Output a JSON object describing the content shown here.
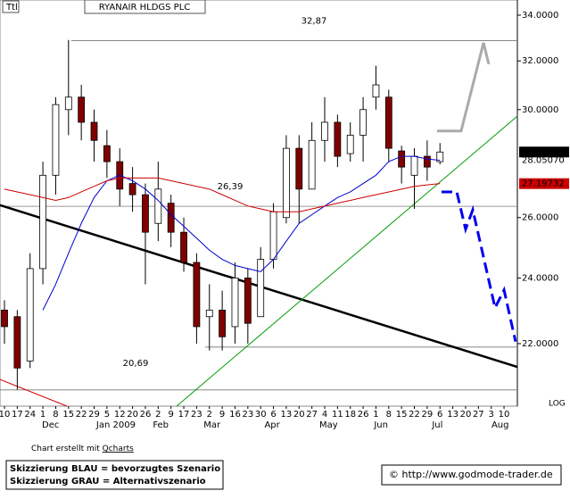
{
  "chart_data": {
    "type": "candlestick",
    "tag": "Ttl",
    "title": "RYANAIR HLDGS PLC",
    "categories": [
      "10",
      "17",
      "24",
      "1",
      "8",
      "15",
      "22",
      "29",
      "5",
      "12",
      "20",
      "26",
      "2",
      "9",
      "17",
      "23",
      "2",
      "9",
      "16",
      "23",
      "30",
      "6",
      "13",
      "20",
      "27",
      "4",
      "11",
      "18",
      "26",
      "1",
      "8",
      "15",
      "22",
      "29",
      "6",
      "13",
      "20",
      "27",
      "3",
      "10"
    ],
    "month_labels": [
      "Dec",
      "Jan 2009",
      "Feb",
      "Mar",
      "Apr",
      "May",
      "Jun",
      "Jul",
      "Aug"
    ],
    "open": [
      23.0,
      22.8,
      21.5,
      24.3,
      27.5,
      30.0,
      30.5,
      29.5,
      28.6,
      28.0,
      27.2,
      26.8,
      25.8,
      26.5,
      25.5,
      24.5,
      22.8,
      23.0,
      22.5,
      24.0,
      22.8,
      24.6,
      26.0,
      28.5,
      27.0,
      28.8,
      29.5,
      28.3,
      29.0,
      30.5,
      30.5,
      28.4,
      27.5,
      28.2,
      28.0,
      null,
      null,
      null,
      null,
      null
    ],
    "high": [
      23.3,
      23.0,
      24.8,
      28.0,
      30.5,
      32.9,
      31.0,
      30.0,
      29.2,
      28.5,
      27.8,
      27.2,
      28.0,
      26.8,
      26.0,
      24.8,
      23.8,
      23.6,
      24.5,
      24.3,
      25.0,
      26.5,
      29.0,
      29.0,
      29.5,
      30.5,
      29.8,
      29.5,
      30.5,
      31.8,
      30.8,
      28.6,
      28.5,
      28.8,
      28.7,
      null,
      null,
      null,
      null,
      null
    ],
    "low": [
      22.0,
      20.7,
      21.3,
      23.8,
      26.8,
      29.0,
      28.8,
      28.0,
      27.4,
      26.4,
      26.2,
      23.8,
      25.2,
      25.0,
      24.2,
      22.0,
      21.8,
      21.8,
      22.0,
      22.0,
      22.8,
      24.3,
      25.8,
      25.8,
      27.0,
      28.0,
      27.8,
      28.0,
      28.0,
      30.0,
      28.0,
      27.2,
      26.3,
      27.3,
      27.9,
      null,
      null,
      null,
      null,
      null
    ],
    "close": [
      22.5,
      21.3,
      24.3,
      27.5,
      30.2,
      30.5,
      29.5,
      28.8,
      28.0,
      27.0,
      26.8,
      25.5,
      27.0,
      25.5,
      24.5,
      22.5,
      23.0,
      22.2,
      24.0,
      22.6,
      24.6,
      26.2,
      28.5,
      27.0,
      28.8,
      29.5,
      28.2,
      29.0,
      30.0,
      31.0,
      28.5,
      27.8,
      28.2,
      27.8,
      28.36,
      null,
      null,
      null,
      null,
      null
    ],
    "close_label": "28.3600",
    "up_color": "#ffffff",
    "down_color": "#800000",
    "series": [
      {
        "color": "#0000cc",
        "values": [
          null,
          null,
          null,
          23.0,
          23.8,
          24.8,
          25.8,
          26.7,
          27.3,
          27.5,
          27.3,
          27.0,
          26.6,
          26.1,
          25.7,
          25.3,
          24.9,
          24.6,
          24.4,
          24.3,
          24.2,
          24.6,
          25.2,
          25.8,
          26.1,
          26.4,
          26.7,
          26.9,
          27.2,
          27.5,
          28.0,
          28.2,
          28.2,
          28.1,
          28.0507,
          null,
          null,
          null,
          null,
          null
        ],
        "last_label": "28.05070"
      },
      {
        "color": "#cc0000",
        "values": [
          27.0,
          26.9,
          26.8,
          26.7,
          26.6,
          26.7,
          26.9,
          27.1,
          27.3,
          27.4,
          27.4,
          27.4,
          27.4,
          27.3,
          27.2,
          27.1,
          27.0,
          26.8,
          26.6,
          26.4,
          26.3,
          26.2,
          26.2,
          26.2,
          26.3,
          26.4,
          26.5,
          26.6,
          26.7,
          26.8,
          26.9,
          27.0,
          27.1,
          27.15,
          27.19732,
          null,
          null,
          null,
          null,
          null
        ],
        "last_label": "27.19732"
      }
    ],
    "ylim": [
      20.25,
      34.69
    ],
    "log": true,
    "log_label": "LOG",
    "yticks": [
      {
        "value": 22,
        "label": "22.0000"
      },
      {
        "value": 24,
        "label": "24.0000"
      },
      {
        "value": 26,
        "label": "26.0000"
      },
      {
        "value": 30,
        "label": "30.0000"
      },
      {
        "value": 32,
        "label": "32.0000"
      },
      {
        "value": 34,
        "label": "34.0000"
      }
    ],
    "levels": [
      32.87,
      26.39,
      21.9,
      20.69
    ],
    "level_labels": [
      "32,87",
      "26,39",
      "20,69"
    ],
    "trendlines": [
      {
        "color": "#000000",
        "width": 2.5,
        "x": [
          -0.35,
          40.04
        ],
        "y": [
          26.43,
          21.33
        ]
      },
      {
        "color": "#009900",
        "width": 1,
        "x": [
          13.44,
          40.04
        ],
        "y": [
          20.25,
          29.74
        ]
      },
      {
        "color": "#cc0000",
        "width": 1,
        "x": [
          -0.35,
          4.88
        ],
        "y": [
          20.98,
          20.25
        ]
      }
    ],
    "scenarios": [
      {
        "color": "#0000ee",
        "dashed": true,
        "x": [
          34.12,
          35.31,
          36.0,
          36.56,
          38.3,
          39.0,
          39.9
        ],
        "y": [
          26.9,
          26.9,
          25.6,
          26.27,
          23.07,
          23.62,
          22.06
        ]
      },
      {
        "color": "#aaaaaa",
        "dashed": false,
        "x": [
          33.77,
          35.65,
          37.4,
          37.81
        ],
        "y": [
          29.16,
          29.16,
          32.78,
          31.86
        ]
      }
    ],
    "credit": "Chart erstellt mit ",
    "credit_link": "Qcharts",
    "legend_lines": [
      "Skizzierung BLAU = bevorzugtes Szenario",
      "Skizzierung GRAU = Alternativszenario"
    ],
    "copyright": "© http://www.godmode-trader.de"
  }
}
